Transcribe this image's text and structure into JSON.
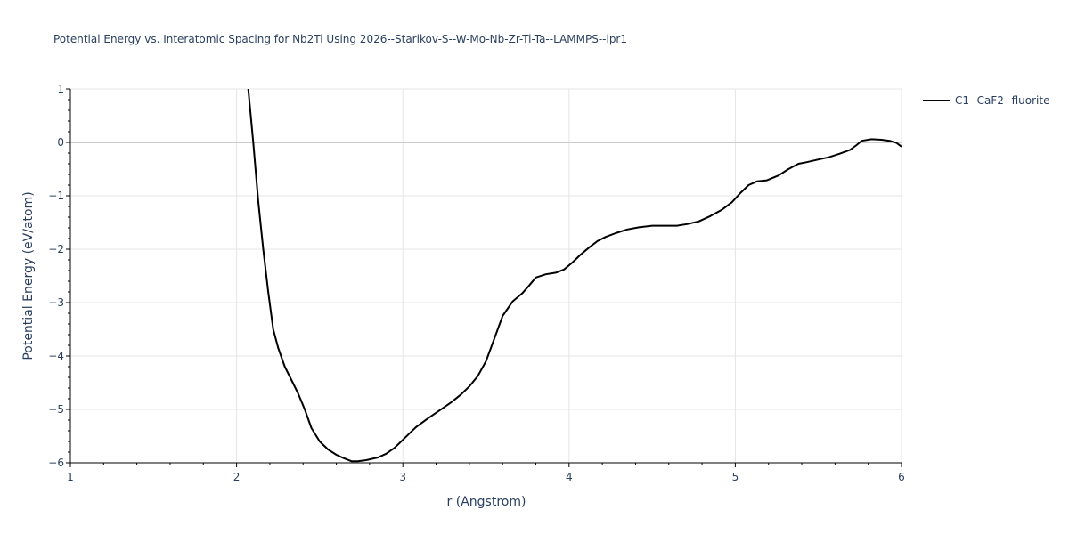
{
  "chart": {
    "title": "Potential Energy vs. Interatomic Spacing for Nb2Ti Using 2026--Starikov-S--W-Mo-Nb-Zr-Ti-Ta--LAMMPS--ipr1",
    "legend_label": "C1--CaF2--fluorite",
    "line_color": "#000000"
  },
  "chart_data": {
    "type": "line",
    "title": "Potential Energy vs. Interatomic Spacing for Nb2Ti Using 2026--Starikov-S--W-Mo-Nb-Zr-Ti-Ta--LAMMPS--ipr1",
    "xlabel": "r (Angstrom)",
    "ylabel": "Potential Energy (eV/atom)",
    "xlim": [
      1,
      6
    ],
    "ylim": [
      -6,
      1
    ],
    "xticks": [
      1,
      2,
      3,
      4,
      5,
      6
    ],
    "yticks": [
      1,
      0,
      -1,
      -2,
      -3,
      -4,
      -5,
      -6
    ],
    "grid": true,
    "legend_position": "top-right outside",
    "series": [
      {
        "name": "C1--CaF2--fluorite",
        "color": "#000000",
        "x": [
          2.07,
          2.1,
          2.13,
          2.16,
          2.19,
          2.22,
          2.25,
          2.29,
          2.33,
          2.37,
          2.41,
          2.45,
          2.5,
          2.55,
          2.6,
          2.65,
          2.69,
          2.73,
          2.78,
          2.85,
          2.9,
          2.95,
          3.0,
          3.05,
          3.08,
          3.15,
          3.22,
          3.29,
          3.35,
          3.4,
          3.45,
          3.5,
          3.55,
          3.6,
          3.66,
          3.72,
          3.76,
          3.8,
          3.86,
          3.92,
          3.97,
          4.02,
          4.07,
          4.12,
          4.17,
          4.22,
          4.28,
          4.35,
          4.42,
          4.5,
          4.58,
          4.65,
          4.71,
          4.78,
          4.85,
          4.92,
          4.98,
          5.03,
          5.08,
          5.13,
          5.19,
          5.26,
          5.32,
          5.38,
          5.43,
          5.5,
          5.56,
          5.63,
          5.69,
          5.73,
          5.76,
          5.82,
          5.88,
          5.93,
          5.97,
          6.0
        ],
        "values": [
          1.0,
          0.0,
          -1.1,
          -2.0,
          -2.8,
          -3.5,
          -3.85,
          -4.2,
          -4.45,
          -4.7,
          -5.0,
          -5.35,
          -5.6,
          -5.75,
          -5.85,
          -5.92,
          -5.97,
          -5.97,
          -5.95,
          -5.9,
          -5.83,
          -5.72,
          -5.57,
          -5.42,
          -5.33,
          -5.17,
          -5.02,
          -4.87,
          -4.72,
          -4.57,
          -4.38,
          -4.1,
          -3.68,
          -3.25,
          -2.98,
          -2.82,
          -2.68,
          -2.53,
          -2.47,
          -2.44,
          -2.38,
          -2.25,
          -2.1,
          -1.97,
          -1.85,
          -1.77,
          -1.7,
          -1.63,
          -1.59,
          -1.56,
          -1.56,
          -1.56,
          -1.53,
          -1.48,
          -1.38,
          -1.26,
          -1.12,
          -0.95,
          -0.8,
          -0.73,
          -0.71,
          -0.62,
          -0.5,
          -0.4,
          -0.37,
          -0.32,
          -0.28,
          -0.21,
          -0.14,
          -0.05,
          0.03,
          0.06,
          0.05,
          0.03,
          -0.01,
          -0.08
        ]
      }
    ]
  },
  "axes": {
    "x_title": "r (Angstrom)",
    "y_title": "Potential Energy (eV/atom)",
    "x_tick_labels": [
      "1",
      "2",
      "3",
      "4",
      "5",
      "6"
    ],
    "y_tick_labels": [
      "1",
      "0",
      "−1",
      "−2",
      "−3",
      "−4",
      "−5",
      "−6"
    ]
  }
}
